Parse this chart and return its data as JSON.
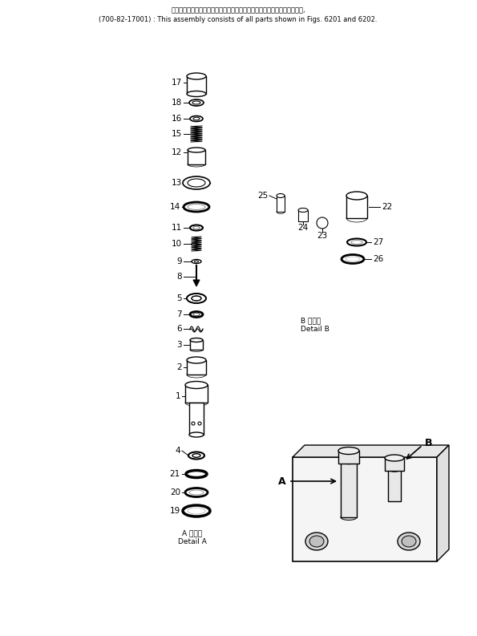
{
  "title_line1": "このアセンブリの構成部品は第６２０１図および第６２０２図を含みます,",
  "title_line2": "(700-82-17001) : This assembly consists of all parts shown in Figs. 6201 and 6202.",
  "detail_a_jp": "A 詳細図",
  "detail_a_en": "Detail A",
  "detail_b_jp": "B 詳細図",
  "detail_b_en": "Detail B",
  "bg_color": "#ffffff",
  "line_color": "#000000"
}
